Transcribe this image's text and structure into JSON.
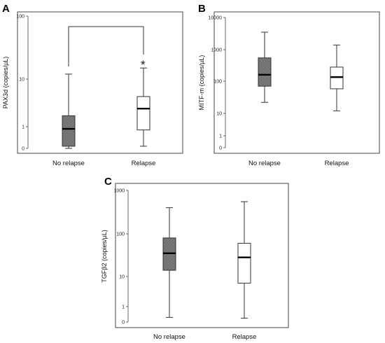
{
  "colors": {
    "filled_box": "#7a7a7a",
    "open_box": "#ffffff",
    "stroke": "#333333",
    "median": "#000000"
  },
  "chart_data": [
    {
      "panel": "A",
      "type": "boxplot",
      "ylabel": "PAX3d (copies/µL)",
      "ytick_labels": [
        "0",
        "1",
        "10",
        "100"
      ],
      "categories": [
        "No relapse",
        "Relapse"
      ],
      "boxes": [
        {
          "category": "No relapse",
          "min": 0,
          "q1": 0.1,
          "median": 0.9,
          "q3": 1.7,
          "max": 12,
          "fill": "filled"
        },
        {
          "category": "Relapse",
          "min": 0.1,
          "q1": 0.85,
          "median": 2.4,
          "q3": 4.3,
          "max": 15,
          "fill": "open"
        }
      ],
      "significance_marker": "*",
      "bracket": [
        "No relapse",
        "Relapse"
      ]
    },
    {
      "panel": "B",
      "type": "boxplot",
      "ylabel": "MITF-m (copies/µL)",
      "ytick_labels": [
        "0",
        "1",
        "10",
        "100",
        "1000",
        "10000"
      ],
      "categories": [
        "No relapse",
        "Relapse"
      ],
      "boxes": [
        {
          "category": "No relapse",
          "min": 22,
          "q1": 70,
          "median": 160,
          "q3": 550,
          "max": 3500,
          "fill": "filled"
        },
        {
          "category": "Relapse",
          "min": 12,
          "q1": 58,
          "median": 135,
          "q3": 280,
          "max": 1400,
          "fill": "open"
        }
      ]
    },
    {
      "panel": "C",
      "type": "boxplot",
      "ylabel": "TGFβ2 (copies/µL)",
      "ytick_labels": [
        "0",
        "1",
        "10",
        "100",
        "1000"
      ],
      "categories": [
        "No relapse",
        "Relapse"
      ],
      "boxes": [
        {
          "category": "No relapse",
          "min": 0.3,
          "q1": 14,
          "median": 35,
          "q3": 80,
          "max": 400,
          "fill": "filled"
        },
        {
          "category": "Relapse",
          "min": 0.25,
          "q1": 6,
          "median": 28,
          "q3": 60,
          "max": 550,
          "fill": "open"
        }
      ]
    }
  ]
}
